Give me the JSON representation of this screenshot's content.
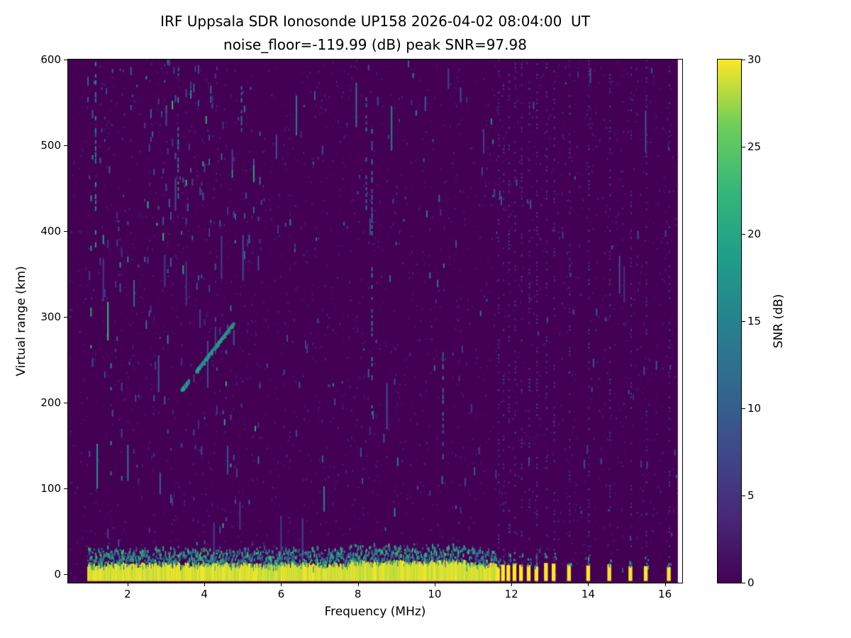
{
  "chart_data": {
    "type": "heatmap",
    "title_line1": "IRF Uppsala SDR Ionosonde UP158 2026-04-02 08:04:00  UT",
    "title_line2": "noise_floor=-119.99 (dB) peak SNR=97.98",
    "xlabel": "Frequency (MHz)",
    "ylabel": "Virtual range (km)",
    "colorbar_label": "SNR (dB)",
    "colormap": "viridis",
    "viridis_stops": [
      "#440154",
      "#482878",
      "#3e4989",
      "#31688e",
      "#26828e",
      "#1f9e89",
      "#35b779",
      "#6ece58",
      "#fde725"
    ],
    "xlim": [
      0.45,
      16.45
    ],
    "ylim": [
      -10,
      600
    ],
    "clim": [
      0,
      30
    ],
    "x_ticks": [
      2,
      4,
      6,
      8,
      10,
      12,
      14,
      16
    ],
    "y_ticks": [
      0,
      100,
      200,
      300,
      400,
      500,
      600
    ],
    "colorbar_ticks": [
      0,
      5,
      10,
      15,
      20,
      25,
      30
    ],
    "legend_position": "right-colorbar",
    "grid": false,
    "features": {
      "ground_return_band": {
        "freq_start": 0.95,
        "freq_end": 11.6,
        "range_center": 0,
        "range_top": 12,
        "snr": 30
      },
      "discrete_pulse_freqs": [
        11.65,
        11.78,
        11.92,
        12.08,
        12.25,
        12.45,
        12.65,
        12.9,
        13.1,
        13.5,
        14.0,
        14.55,
        15.1,
        15.5,
        16.1
      ],
      "echo_trace": {
        "freq_start": 3.4,
        "freq_end": 4.75,
        "range_start": 215,
        "range_end": 292,
        "snr": 17
      },
      "noise_regions": [
        {
          "freq_start": 0.95,
          "freq_end": 5.5,
          "speckles_per_column": 2.1,
          "max_snr": 23
        },
        {
          "freq_start": 5.5,
          "freq_end": 11.6,
          "speckles_per_column": 0.7,
          "max_snr": 16
        },
        {
          "freq_start": 11.6,
          "freq_end": 16.3,
          "speckles_per_column": 0.35,
          "max_snr": 9
        }
      ],
      "vertical_streaks": [
        {
          "freq": 1.15,
          "range_start": 380,
          "range_end": 600,
          "snr": 15
        },
        {
          "freq": 1.55,
          "range_start": 120,
          "range_end": 250,
          "snr": 16
        },
        {
          "freq": 3.3,
          "range_start": 430,
          "range_end": 600,
          "snr": 13
        },
        {
          "freq": 4.95,
          "range_start": 520,
          "range_end": 600,
          "snr": 12
        },
        {
          "freq": 8.2,
          "range_start": 430,
          "range_end": 560,
          "snr": 10
        },
        {
          "freq": 8.35,
          "range_start": 190,
          "range_end": 520,
          "snr": 12
        },
        {
          "freq": 10.2,
          "range_start": 140,
          "range_end": 260,
          "snr": 11
        }
      ]
    }
  }
}
